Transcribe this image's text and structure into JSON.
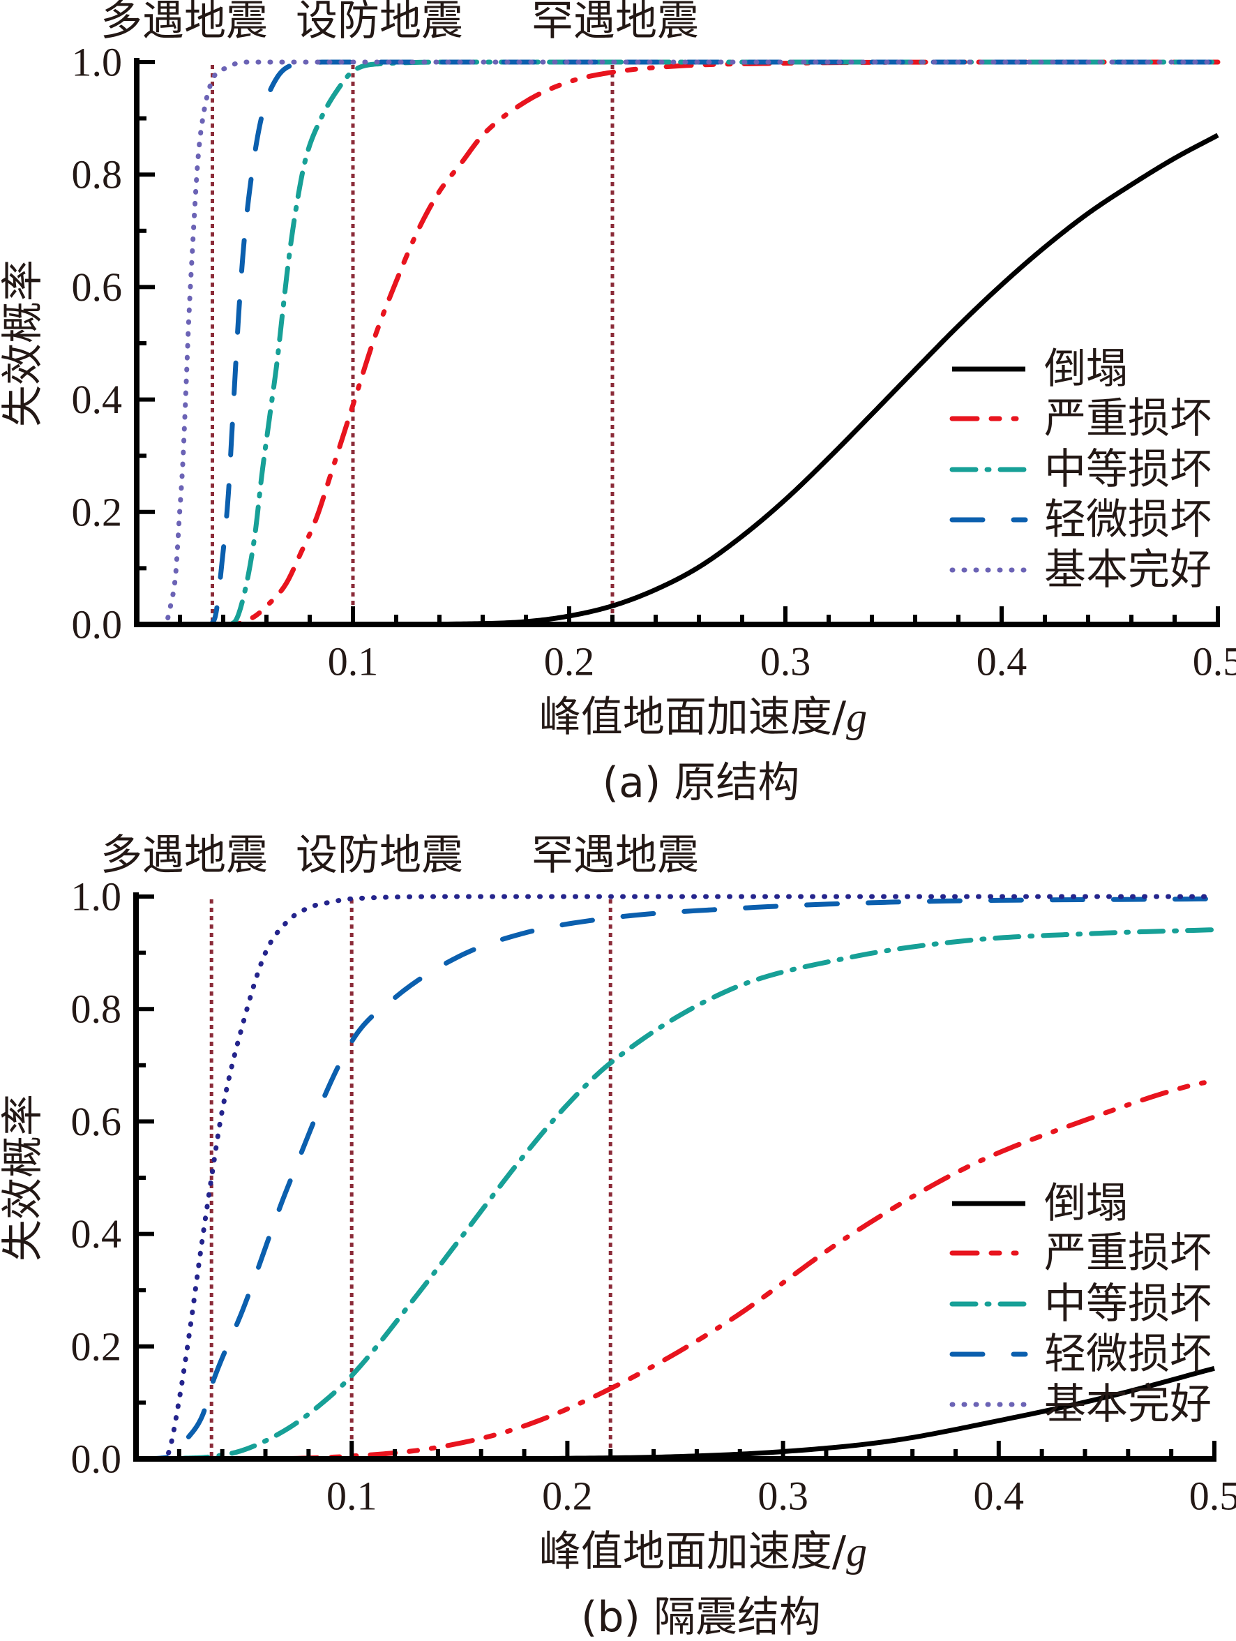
{
  "chart_data": [
    {
      "type": "line",
      "panel": "a",
      "caption": "(a) 原结构",
      "xlabel_main": "峰值地面加速度/",
      "xlabel_unit": "g",
      "ylabel": "失效概率",
      "xlim": [
        0,
        0.5
      ],
      "ylim": [
        0,
        1
      ],
      "grid": false,
      "legend_position": "lower-right",
      "reference_line_color": "#8b2b38",
      "reference_lines": [
        {
          "x": 0.035,
          "label": "多遇地震"
        },
        {
          "x": 0.1,
          "label": "设防地震"
        },
        {
          "x": 0.22,
          "label": "罕遇地震"
        }
      ],
      "xticks": [
        {
          "value": 0.1,
          "label": "0.1"
        },
        {
          "value": 0.2,
          "label": "0.2"
        },
        {
          "value": 0.3,
          "label": "0.3"
        },
        {
          "value": 0.4,
          "label": "0.4"
        },
        {
          "value": 0.5,
          "label": "0.5"
        }
      ],
      "yticks": [
        {
          "value": 0.0,
          "label": "0.0"
        },
        {
          "value": 0.2,
          "label": "0.2"
        },
        {
          "value": 0.4,
          "label": "0.4"
        },
        {
          "value": 0.6,
          "label": "0.6"
        },
        {
          "value": 0.8,
          "label": "0.8"
        },
        {
          "value": 1.0,
          "label": "1.0"
        }
      ],
      "series": [
        {
          "name": "倒塌",
          "color": "#000000",
          "legend_color": "#000000",
          "line_style": "solid",
          "x": [
            0,
            0.1,
            0.15,
            0.18,
            0.2,
            0.22,
            0.24,
            0.26,
            0.28,
            0.3,
            0.32,
            0.34,
            0.36,
            0.38,
            0.4,
            0.42,
            0.44,
            0.46,
            0.48,
            0.5
          ],
          "y": [
            0,
            0.0,
            0.001,
            0.005,
            0.015,
            0.033,
            0.062,
            0.102,
            0.157,
            0.222,
            0.296,
            0.374,
            0.453,
            0.531,
            0.604,
            0.671,
            0.731,
            0.782,
            0.829,
            0.87
          ]
        },
        {
          "name": "严重损坏",
          "color": "#e8141e",
          "legend_color": "#e8141e",
          "line_style": "dash-dot-dot",
          "x": [
            0,
            0.044,
            0.054,
            0.061,
            0.069,
            0.076,
            0.083,
            0.09,
            0.1,
            0.11,
            0.12,
            0.13,
            0.14,
            0.15,
            0.16,
            0.18,
            0.2,
            0.22,
            0.25,
            0.3,
            0.4,
            0.5
          ],
          "y": [
            0,
            0,
            0.013,
            0.036,
            0.072,
            0.128,
            0.188,
            0.27,
            0.39,
            0.51,
            0.61,
            0.7,
            0.77,
            0.82,
            0.87,
            0.93,
            0.965,
            0.982,
            0.993,
            0.998,
            1,
            1
          ]
        },
        {
          "name": "中等损坏",
          "color": "#17a097",
          "legend_color": "#17a097",
          "line_style": "dash-dot",
          "x": [
            0,
            0.04,
            0.0448,
            0.049,
            0.0545,
            0.058,
            0.0615,
            0.065,
            0.0675,
            0.0705,
            0.074,
            0.078,
            0.085,
            0.094,
            0.1,
            0.113,
            0.15,
            0.5
          ],
          "y": [
            0,
            0,
            0.003,
            0.043,
            0.155,
            0.27,
            0.37,
            0.47,
            0.556,
            0.655,
            0.747,
            0.826,
            0.898,
            0.957,
            0.984,
            0.997,
            1,
            1
          ]
        },
        {
          "name": "轻微损坏",
          "color": "#0b5fae",
          "legend_color": "#0b5fae",
          "line_style": "dash",
          "x": [
            0,
            0.033,
            0.036,
            0.0397,
            0.0424,
            0.044,
            0.0473,
            0.0495,
            0.0527,
            0.0575,
            0.0645,
            0.075,
            0.09,
            0.5
          ],
          "y": [
            0,
            0,
            0.01,
            0.12,
            0.233,
            0.34,
            0.56,
            0.674,
            0.786,
            0.898,
            0.97,
            0.997,
            1,
            1
          ]
        },
        {
          "name": "基本完好",
          "color": "#6b63b5",
          "legend_color": "#6b63b5",
          "line_style": "dot",
          "x": [
            0,
            0.013,
            0.0158,
            0.018,
            0.0197,
            0.0213,
            0.0229,
            0.024,
            0.0256,
            0.0283,
            0.031,
            0.0352,
            0.0416,
            0.05,
            0.5
          ],
          "y": [
            0,
            0,
            0.036,
            0.089,
            0.19,
            0.286,
            0.43,
            0.536,
            0.655,
            0.826,
            0.91,
            0.97,
            0.99,
            1,
            1
          ]
        }
      ]
    },
    {
      "type": "line",
      "panel": "b",
      "caption": "(b) 隔震结构",
      "xlabel_main": "峰值地面加速度/",
      "xlabel_unit": "g",
      "ylabel": "失效概率",
      "xlim": [
        0,
        0.5
      ],
      "ylim": [
        0,
        1
      ],
      "grid": false,
      "legend_position": "lower-right",
      "reference_line_color": "#8b2b38",
      "reference_lines": [
        {
          "x": 0.035,
          "label": "多遇地震"
        },
        {
          "x": 0.1,
          "label": "设防地震"
        },
        {
          "x": 0.22,
          "label": "罕遇地震"
        }
      ],
      "xticks": [
        {
          "value": 0.1,
          "label": "0.1"
        },
        {
          "value": 0.2,
          "label": "0.2"
        },
        {
          "value": 0.3,
          "label": "0.3"
        },
        {
          "value": 0.4,
          "label": "0.4"
        },
        {
          "value": 0.5,
          "label": "0.5"
        }
      ],
      "yticks": [
        {
          "value": 0.0,
          "label": "0.0"
        },
        {
          "value": 0.2,
          "label": "0.2"
        },
        {
          "value": 0.4,
          "label": "0.4"
        },
        {
          "value": 0.6,
          "label": "0.6"
        },
        {
          "value": 0.8,
          "label": "0.8"
        },
        {
          "value": 1.0,
          "label": "1.0"
        }
      ],
      "series": [
        {
          "name": "倒塌",
          "color": "#000000",
          "legend_color": "#000000",
          "line_style": "solid",
          "x": [
            0,
            0.15,
            0.2,
            0.25,
            0.3,
            0.35,
            0.4,
            0.45,
            0.5
          ],
          "y": [
            0,
            0,
            0.001,
            0.004,
            0.013,
            0.032,
            0.068,
            0.11,
            0.161
          ]
        },
        {
          "name": "严重损坏",
          "color": "#e8141e",
          "legend_color": "#e8141e",
          "line_style": "dash-dot-dot",
          "x": [
            0,
            0.05,
            0.1,
            0.139,
            0.178,
            0.22,
            0.274,
            0.33,
            0.386,
            0.442,
            0.49,
            0.5
          ],
          "y": [
            0,
            0,
            0.005,
            0.02,
            0.056,
            0.125,
            0.243,
            0.395,
            0.52,
            0.605,
            0.665,
            0.672
          ]
        },
        {
          "name": "中等损坏",
          "color": "#17a097",
          "legend_color": "#17a097",
          "line_style": "dash-dot",
          "x": [
            0,
            0.02,
            0.035,
            0.05,
            0.07,
            0.085,
            0.1,
            0.13,
            0.15,
            0.18,
            0.2,
            0.22,
            0.274,
            0.33,
            0.386,
            0.442,
            0.5
          ],
          "y": [
            0,
            0.001,
            0.004,
            0.016,
            0.053,
            0.095,
            0.148,
            0.29,
            0.39,
            0.54,
            0.63,
            0.704,
            0.832,
            0.891,
            0.922,
            0.934,
            0.941
          ]
        },
        {
          "name": "轻微损坏",
          "color": "#0b5fae",
          "legend_color": "#0b5fae",
          "line_style": "dash",
          "x": [
            0,
            0.015,
            0.02,
            0.0231,
            0.031,
            0.035,
            0.05,
            0.07,
            0.1,
            0.12,
            0.15,
            0.18,
            0.22,
            0.274,
            0.35,
            0.5
          ],
          "y": [
            0,
            0.003,
            0.02,
            0.033,
            0.079,
            0.13,
            0.27,
            0.48,
            0.742,
            0.82,
            0.894,
            0.935,
            0.962,
            0.978,
            0.99,
            0.996
          ]
        },
        {
          "name": "基本完好",
          "color": "#24248c",
          "legend_color": "#6b63b5",
          "line_style": "dot",
          "x": [
            0,
            0.012,
            0.015,
            0.02,
            0.025,
            0.03,
            0.035,
            0.04,
            0.05,
            0.06,
            0.07,
            0.08,
            0.09,
            0.1,
            0.15,
            0.5
          ],
          "y": [
            0,
            0,
            0.01,
            0.105,
            0.23,
            0.37,
            0.5,
            0.62,
            0.78,
            0.9,
            0.955,
            0.98,
            0.99,
            0.996,
            1,
            1
          ]
        }
      ]
    }
  ]
}
